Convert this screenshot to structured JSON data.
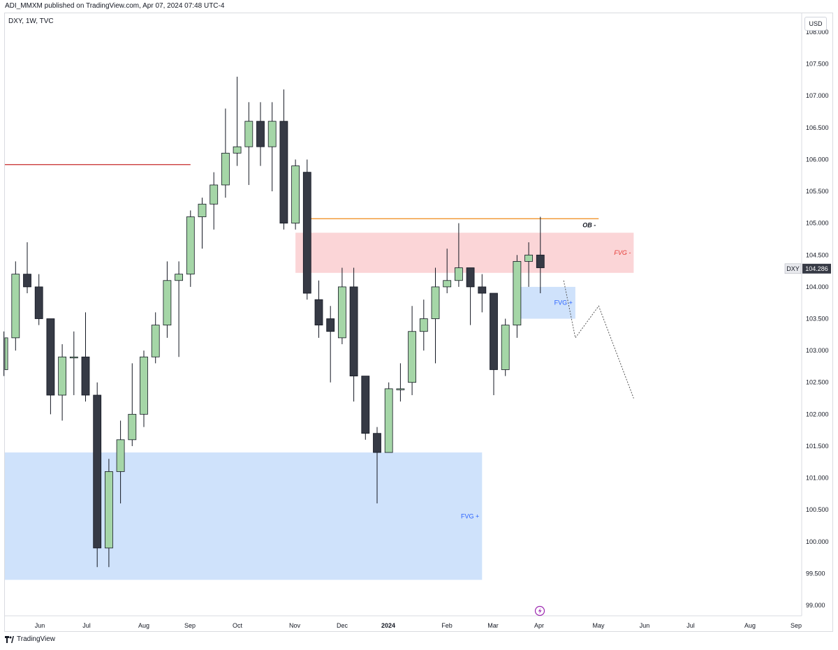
{
  "header": {
    "publish_line": "ADI_MMXM published on TradingView.com, Apr 07, 2024 07:48 UTC-4"
  },
  "symbol_line": "DXY, 1W, TVC",
  "currency": "USD",
  "footer": {
    "brand": "TradingView"
  },
  "colors": {
    "bull": "#a5d6a7",
    "bear": "#363a45",
    "wick": "#131722",
    "fvg_plus": "#cfe2fb",
    "fvg_minus": "#fbd5d7",
    "red_line": "#c62828",
    "orange_line": "#ef8a17",
    "fvg_plus_text": "#2962ff",
    "fvg_minus_text": "#e53935",
    "current_price_bg": "#363a45"
  },
  "chart_data": {
    "type": "candlestick",
    "symbol": "DXY",
    "interval": "1W",
    "x_labels": [
      "Jun",
      "Jul",
      "Aug",
      "Sep",
      "Oct",
      "Nov",
      "Dec",
      "2024",
      "Feb",
      "Mar",
      "Apr",
      "May",
      "Jun",
      "Jul",
      "Aug",
      "Sep"
    ],
    "y_ticks": [
      "108.000",
      "107.500",
      "107.000",
      "106.500",
      "106.000",
      "105.500",
      "105.000",
      "104.500",
      "104.000",
      "103.500",
      "103.000",
      "102.500",
      "102.000",
      "101.500",
      "101.000",
      "100.500",
      "100.000",
      "99.500",
      "99.000"
    ],
    "ylim": [
      98.9,
      108.2
    ],
    "current_price": {
      "label": "DXY",
      "value": "104.286",
      "numeric": 104.286
    },
    "candles": [
      {
        "date": "2023-05-15",
        "o": 102.7,
        "h": 103.3,
        "l": 102.6,
        "c": 103.2
      },
      {
        "date": "2023-05-22",
        "o": 103.2,
        "h": 104.4,
        "l": 103.0,
        "c": 104.2
      },
      {
        "date": "2023-05-29",
        "o": 104.2,
        "h": 104.7,
        "l": 103.9,
        "c": 104.0
      },
      {
        "date": "2023-06-05",
        "o": 104.0,
        "h": 104.2,
        "l": 103.4,
        "c": 103.5
      },
      {
        "date": "2023-06-12",
        "o": 103.5,
        "h": 103.5,
        "l": 102.0,
        "c": 102.3
      },
      {
        "date": "2023-06-19",
        "o": 102.3,
        "h": 103.1,
        "l": 101.9,
        "c": 102.9
      },
      {
        "date": "2023-06-26",
        "o": 102.9,
        "h": 103.3,
        "l": 102.3,
        "c": 102.9
      },
      {
        "date": "2023-07-03",
        "o": 102.9,
        "h": 103.6,
        "l": 102.2,
        "c": 102.3
      },
      {
        "date": "2023-07-10",
        "o": 102.3,
        "h": 102.5,
        "l": 99.6,
        "c": 99.9
      },
      {
        "date": "2023-07-17",
        "o": 99.9,
        "h": 101.3,
        "l": 99.6,
        "c": 101.1
      },
      {
        "date": "2023-07-24",
        "o": 101.1,
        "h": 101.9,
        "l": 100.6,
        "c": 101.6
      },
      {
        "date": "2023-07-31",
        "o": 101.6,
        "h": 102.8,
        "l": 101.5,
        "c": 102.0
      },
      {
        "date": "2023-08-07",
        "o": 102.0,
        "h": 103.0,
        "l": 101.8,
        "c": 102.9
      },
      {
        "date": "2023-08-14",
        "o": 102.9,
        "h": 103.6,
        "l": 102.8,
        "c": 103.4
      },
      {
        "date": "2023-08-21",
        "o": 103.4,
        "h": 104.4,
        "l": 103.2,
        "c": 104.1
      },
      {
        "date": "2023-08-28",
        "o": 104.1,
        "h": 104.4,
        "l": 102.9,
        "c": 104.2
      },
      {
        "date": "2023-09-04",
        "o": 104.2,
        "h": 105.2,
        "l": 104.0,
        "c": 105.1
      },
      {
        "date": "2023-09-11",
        "o": 105.1,
        "h": 105.4,
        "l": 104.6,
        "c": 105.3
      },
      {
        "date": "2023-09-18",
        "o": 105.3,
        "h": 105.8,
        "l": 104.9,
        "c": 105.6
      },
      {
        "date": "2023-09-25",
        "o": 105.6,
        "h": 106.8,
        "l": 105.4,
        "c": 106.1
      },
      {
        "date": "2023-10-02",
        "o": 106.1,
        "h": 107.3,
        "l": 105.9,
        "c": 106.2
      },
      {
        "date": "2023-10-09",
        "o": 106.2,
        "h": 106.9,
        "l": 105.6,
        "c": 106.6
      },
      {
        "date": "2023-10-16",
        "o": 106.6,
        "h": 106.9,
        "l": 105.9,
        "c": 106.2
      },
      {
        "date": "2023-10-23",
        "o": 106.2,
        "h": 106.9,
        "l": 105.5,
        "c": 106.6
      },
      {
        "date": "2023-10-30",
        "o": 106.6,
        "h": 107.1,
        "l": 104.9,
        "c": 105.0
      },
      {
        "date": "2023-11-06",
        "o": 105.0,
        "h": 106.0,
        "l": 104.9,
        "c": 105.9
      },
      {
        "date": "2023-11-13",
        "o": 105.8,
        "h": 106.0,
        "l": 103.8,
        "c": 103.9
      },
      {
        "date": "2023-11-20",
        "o": 103.8,
        "h": 104.1,
        "l": 103.2,
        "c": 103.4
      },
      {
        "date": "2023-11-27",
        "o": 103.5,
        "h": 103.7,
        "l": 102.5,
        "c": 103.3
      },
      {
        "date": "2023-12-04",
        "o": 103.2,
        "h": 104.3,
        "l": 103.1,
        "c": 104.0
      },
      {
        "date": "2023-12-11",
        "o": 104.0,
        "h": 104.3,
        "l": 102.2,
        "c": 102.6
      },
      {
        "date": "2023-12-18",
        "o": 102.6,
        "h": 102.6,
        "l": 101.6,
        "c": 101.7
      },
      {
        "date": "2023-12-25",
        "o": 101.7,
        "h": 101.8,
        "l": 100.6,
        "c": 101.4
      },
      {
        "date": "2024-01-01",
        "o": 101.4,
        "h": 102.5,
        "l": 101.4,
        "c": 102.4
      },
      {
        "date": "2024-01-08",
        "o": 102.4,
        "h": 102.8,
        "l": 102.2,
        "c": 102.4
      },
      {
        "date": "2024-01-15",
        "o": 102.5,
        "h": 103.7,
        "l": 102.3,
        "c": 103.3
      },
      {
        "date": "2024-01-22",
        "o": 103.3,
        "h": 103.8,
        "l": 103.0,
        "c": 103.5
      },
      {
        "date": "2024-01-29",
        "o": 103.5,
        "h": 104.3,
        "l": 102.8,
        "c": 104.0
      },
      {
        "date": "2024-02-05",
        "o": 104.0,
        "h": 104.6,
        "l": 103.9,
        "c": 104.1
      },
      {
        "date": "2024-02-12",
        "o": 104.1,
        "h": 105.0,
        "l": 104.0,
        "c": 104.3
      },
      {
        "date": "2024-02-19",
        "o": 104.3,
        "h": 104.3,
        "l": 103.4,
        "c": 104.0
      },
      {
        "date": "2024-02-26",
        "o": 104.0,
        "h": 104.2,
        "l": 103.6,
        "c": 103.9
      },
      {
        "date": "2024-03-04",
        "o": 103.9,
        "h": 103.9,
        "l": 102.3,
        "c": 102.7
      },
      {
        "date": "2024-03-11",
        "o": 102.7,
        "h": 103.5,
        "l": 102.6,
        "c": 103.4
      },
      {
        "date": "2024-03-18",
        "o": 103.4,
        "h": 104.5,
        "l": 103.2,
        "c": 104.4
      },
      {
        "date": "2024-03-25",
        "o": 104.4,
        "h": 104.7,
        "l": 104.0,
        "c": 104.5
      },
      {
        "date": "2024-04-01",
        "o": 104.5,
        "h": 105.1,
        "l": 103.9,
        "c": 104.3
      }
    ],
    "zones": [
      {
        "label": "FVG +",
        "from": "2023-05-08",
        "to": "2024-02-26",
        "top": 101.4,
        "bottom": 99.4,
        "kind": "plus"
      },
      {
        "label": "FVG -",
        "from": "2023-11-06",
        "to": "2024-05-27",
        "top": 104.85,
        "bottom": 104.22,
        "kind": "minus"
      },
      {
        "label": "FVG +",
        "from": "2024-03-18",
        "to": "2024-04-22",
        "top": 104.0,
        "bottom": 103.5,
        "kind": "plus"
      }
    ],
    "lines": [
      {
        "label": "",
        "from": "2023-05-08",
        "to": "2023-09-04",
        "y": 105.92,
        "kind": "red"
      },
      {
        "label": "OB -",
        "from": "2023-11-13",
        "to": "2024-05-06",
        "y": 105.07,
        "kind": "orange"
      }
    ],
    "projection": [
      {
        "date": "2024-04-15",
        "y": 104.1
      },
      {
        "date": "2024-04-22",
        "y": 103.2
      },
      {
        "date": "2024-05-06",
        "y": 103.7
      },
      {
        "date": "2024-05-27",
        "y": 102.25
      }
    ]
  }
}
